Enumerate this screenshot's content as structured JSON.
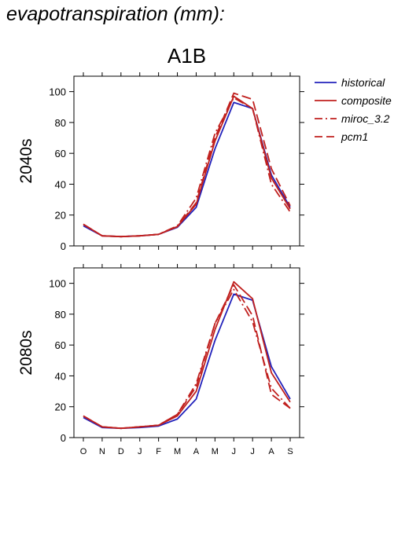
{
  "page_title": "evapotranspiration (mm):",
  "colors": {
    "historical": "#2222bb",
    "future": "#c0201e",
    "axis": "#000000"
  },
  "chart_data": [
    {
      "type": "line",
      "title": "A1B",
      "ylabel": "2040s",
      "xlabel": "",
      "categories": [
        "O",
        "N",
        "D",
        "J",
        "F",
        "M",
        "A",
        "M",
        "J",
        "J",
        "A",
        "S"
      ],
      "ylim": [
        0,
        110
      ],
      "yticks": [
        0,
        20,
        40,
        60,
        80,
        100
      ],
      "grid": false,
      "legend_position": "right, outside plot",
      "series": [
        {
          "name": "historical",
          "style": "solid",
          "color": "#2222bb",
          "values": [
            13,
            6.5,
            6,
            6.5,
            7.5,
            12,
            25,
            63,
            93,
            89,
            46,
            25
          ]
        },
        {
          "name": "composite",
          "style": "solid",
          "color": "#c0201e",
          "values": [
            14,
            6.5,
            6,
            6.5,
            7.5,
            12.5,
            27,
            68,
            97,
            89,
            44,
            24
          ]
        },
        {
          "name": "miroc_3.2",
          "style": "dashdot",
          "color": "#c0201e",
          "values": [
            14,
            6.5,
            6,
            6.5,
            7.5,
            13,
            31,
            73,
            96,
            89,
            40,
            22
          ]
        },
        {
          "name": "pcm1",
          "style": "dashed",
          "color": "#c0201e",
          "values": [
            14,
            6.5,
            6,
            6.5,
            7.5,
            12.5,
            28,
            70,
            99,
            95,
            50,
            26
          ]
        }
      ]
    },
    {
      "type": "line",
      "title": "",
      "ylabel": "2080s",
      "xlabel": "",
      "categories": [
        "O",
        "N",
        "D",
        "J",
        "F",
        "M",
        "A",
        "M",
        "J",
        "J",
        "A",
        "S"
      ],
      "ylim": [
        0,
        110
      ],
      "yticks": [
        0,
        20,
        40,
        60,
        80,
        100
      ],
      "grid": false,
      "series": [
        {
          "name": "historical",
          "style": "solid",
          "color": "#2222bb",
          "values": [
            13,
            6.5,
            6,
            6.5,
            7.5,
            12,
            25,
            63,
            93,
            89,
            46,
            25
          ]
        },
        {
          "name": "composite",
          "style": "solid",
          "color": "#c0201e",
          "values": [
            14,
            7,
            6,
            7,
            8,
            14,
            30,
            70,
            101,
            90,
            42,
            23
          ]
        },
        {
          "name": "miroc_3.2",
          "style": "dashdot",
          "color": "#c0201e",
          "values": [
            14,
            7,
            6,
            7,
            8,
            15,
            35,
            74,
            96,
            75,
            32,
            19
          ]
        },
        {
          "name": "pcm1",
          "style": "dashed",
          "color": "#c0201e",
          "values": [
            14,
            7,
            6,
            7,
            8,
            15,
            33,
            74,
            99,
            79,
            28,
            19
          ]
        }
      ]
    }
  ]
}
